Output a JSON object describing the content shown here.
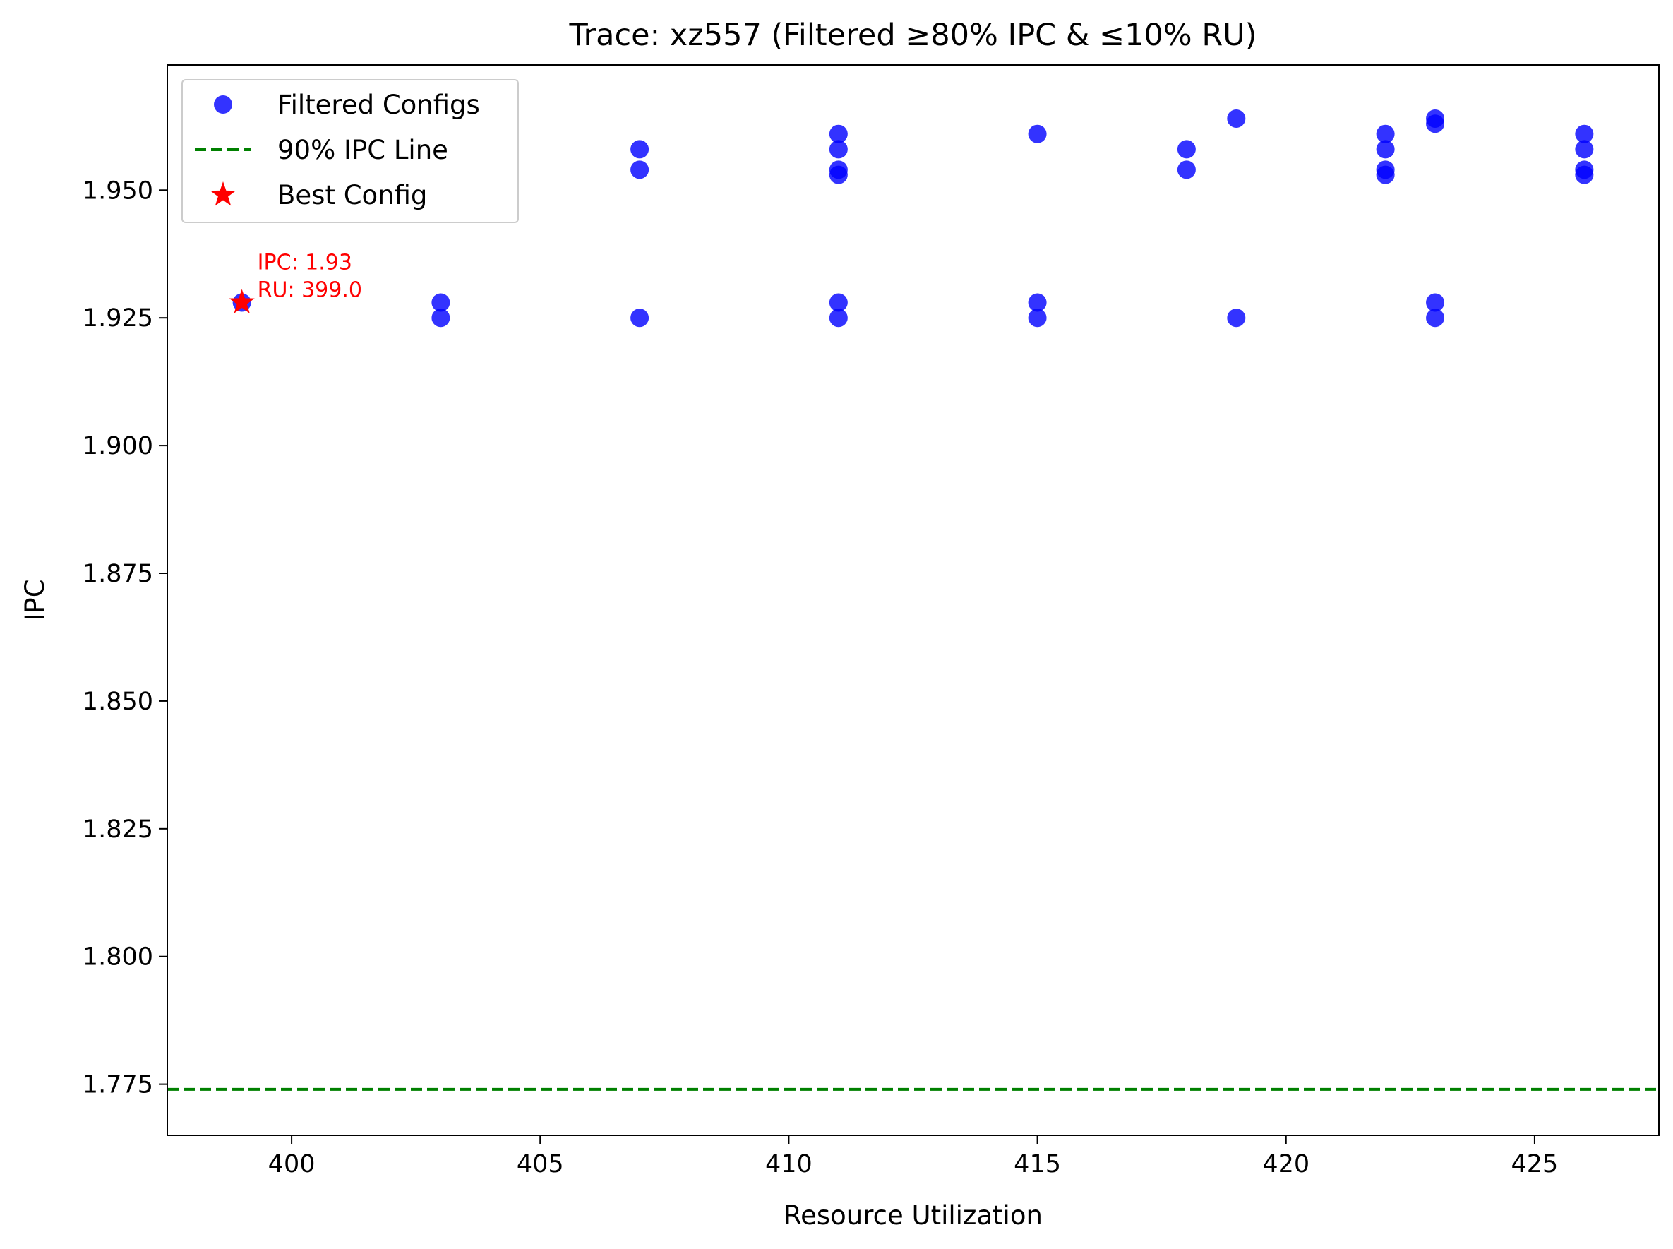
{
  "chart_data": {
    "type": "scatter",
    "title": "Trace: xz557 (Filtered ≥80% IPC & ≤10% RU)",
    "xlabel": "Resource Utilization",
    "ylabel": "IPC",
    "xlim": [
      397.5,
      427.5
    ],
    "ylim": [
      1.765,
      1.9745
    ],
    "xticks": [
      400,
      405,
      410,
      415,
      420,
      425
    ],
    "yticks": [
      1.775,
      1.8,
      1.825,
      1.85,
      1.875,
      1.9,
      1.925,
      1.95
    ],
    "xtick_labels": [
      "400",
      "405",
      "410",
      "415",
      "420",
      "425"
    ],
    "ytick_labels": [
      "1.775",
      "1.800",
      "1.825",
      "1.850",
      "1.875",
      "1.900",
      "1.925",
      "1.950"
    ],
    "grid": false,
    "legend_position": "top-left",
    "series": [
      {
        "name": "Filtered Configs",
        "marker": "circle",
        "color": "#0000ff",
        "points": [
          [
            399,
            1.928
          ],
          [
            403,
            1.928
          ],
          [
            403,
            1.925
          ],
          [
            407,
            1.958
          ],
          [
            407,
            1.954
          ],
          [
            407,
            1.925
          ],
          [
            411,
            1.961
          ],
          [
            411,
            1.958
          ],
          [
            411,
            1.954
          ],
          [
            411,
            1.953
          ],
          [
            411,
            1.928
          ],
          [
            411,
            1.925
          ],
          [
            415,
            1.961
          ],
          [
            415,
            1.928
          ],
          [
            415,
            1.925
          ],
          [
            418,
            1.958
          ],
          [
            418,
            1.954
          ],
          [
            419,
            1.964
          ],
          [
            419,
            1.925
          ],
          [
            422,
            1.961
          ],
          [
            422,
            1.958
          ],
          [
            422,
            1.954
          ],
          [
            422,
            1.953
          ],
          [
            423,
            1.964
          ],
          [
            423,
            1.963
          ],
          [
            423,
            1.928
          ],
          [
            423,
            1.925
          ],
          [
            426,
            1.961
          ],
          [
            426,
            1.958
          ],
          [
            426,
            1.954
          ],
          [
            426,
            1.953
          ]
        ]
      },
      {
        "name": "90% IPC Line",
        "type": "hline",
        "style": "dashed",
        "color": "#008000",
        "y": 1.774
      },
      {
        "name": "Best Config",
        "marker": "star",
        "color": "#ff0000",
        "points": [
          [
            399,
            1.928
          ]
        ]
      }
    ],
    "annotations": [
      {
        "lines": [
          "IPC: 1.93",
          "RU: 399.0"
        ],
        "x": 399,
        "y": 1.928,
        "color": "#ff0000"
      }
    ]
  }
}
